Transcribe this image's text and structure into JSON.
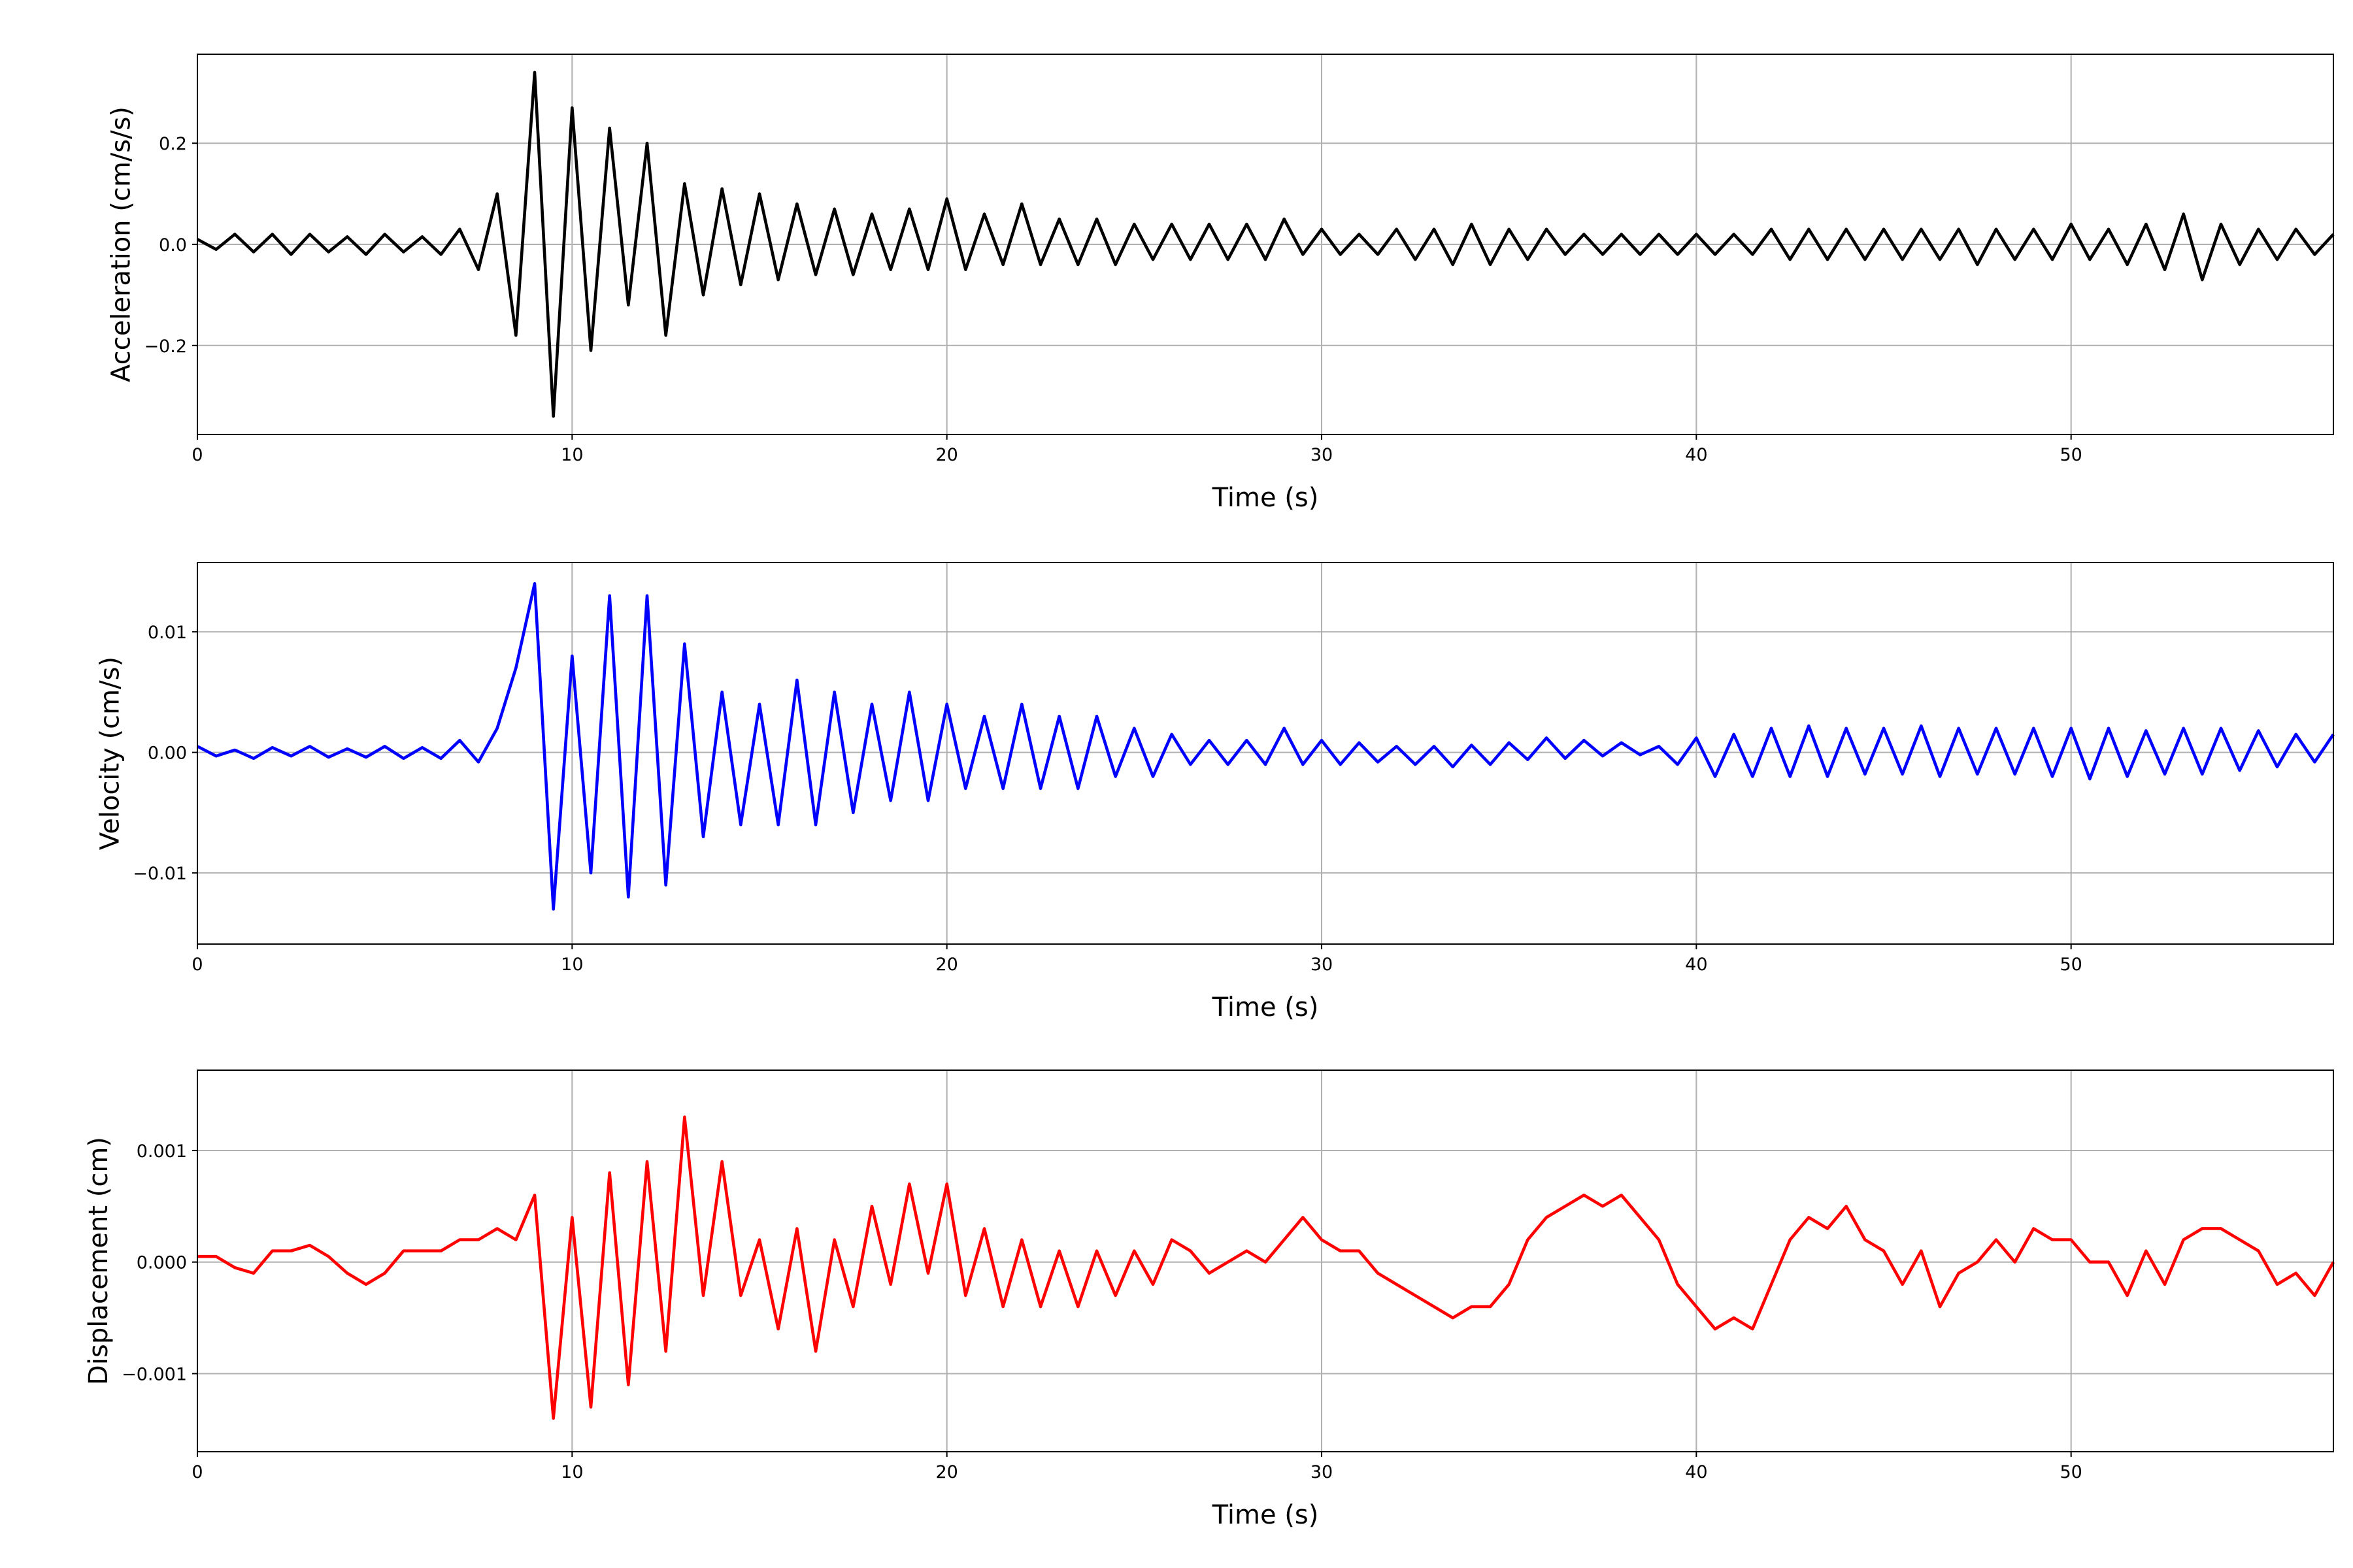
{
  "chart_data": [
    {
      "type": "line",
      "xlabel": "Time (s)",
      "ylabel": "Acceleration (cm/s/s)",
      "x": [
        0,
        0.5,
        1,
        1.5,
        2,
        2.5,
        3,
        3.5,
        4,
        4.5,
        5,
        5.5,
        6,
        6.5,
        7,
        7.5,
        8,
        8.5,
        9,
        9.5,
        10,
        10.5,
        11,
        11.5,
        12,
        12.5,
        13,
        13.5,
        14,
        14.5,
        15,
        15.5,
        16,
        16.5,
        17,
        17.5,
        18,
        18.5,
        19,
        19.5,
        20,
        20.5,
        21,
        21.5,
        22,
        22.5,
        23,
        23.5,
        24,
        24.5,
        25,
        25.5,
        26,
        26.5,
        27,
        27.5,
        28,
        28.5,
        29,
        29.5,
        30,
        30.5,
        31,
        31.5,
        32,
        32.5,
        33,
        33.5,
        34,
        34.5,
        35,
        35.5,
        36,
        36.5,
        37,
        37.5,
        38,
        38.5,
        39,
        39.5,
        40,
        40.5,
        41,
        41.5,
        42,
        42.5,
        43,
        43.5,
        44,
        44.5,
        45,
        45.5,
        46,
        46.5,
        47,
        47.5,
        48,
        48.5,
        49,
        49.5,
        50,
        50.5,
        51,
        51.5,
        52,
        52.5,
        53,
        53.5,
        54,
        54.5,
        55,
        55.5,
        56,
        56.5,
        57
      ],
      "series": [
        {
          "color": "#000000",
          "values": [
            0.01,
            -0.01,
            0.02,
            -0.015,
            0.02,
            -0.02,
            0.02,
            -0.015,
            0.015,
            -0.02,
            0.02,
            -0.015,
            0.015,
            -0.02,
            0.03,
            -0.05,
            0.1,
            -0.18,
            0.34,
            -0.34,
            0.27,
            -0.21,
            0.23,
            -0.12,
            0.2,
            -0.18,
            0.12,
            -0.1,
            0.11,
            -0.08,
            0.1,
            -0.07,
            0.08,
            -0.06,
            0.07,
            -0.06,
            0.06,
            -0.05,
            0.07,
            -0.05,
            0.09,
            -0.05,
            0.06,
            -0.04,
            0.08,
            -0.04,
            0.05,
            -0.04,
            0.05,
            -0.04,
            0.04,
            -0.03,
            0.04,
            -0.03,
            0.04,
            -0.03,
            0.04,
            -0.03,
            0.05,
            -0.02,
            0.03,
            -0.02,
            0.02,
            -0.02,
            0.03,
            -0.03,
            0.03,
            -0.04,
            0.04,
            -0.04,
            0.03,
            -0.03,
            0.03,
            -0.02,
            0.02,
            -0.02,
            0.02,
            -0.02,
            0.02,
            -0.02,
            0.02,
            -0.02,
            0.02,
            -0.02,
            0.03,
            -0.03,
            0.03,
            -0.03,
            0.03,
            -0.03,
            0.03,
            -0.03,
            0.03,
            -0.03,
            0.03,
            -0.04,
            0.03,
            -0.03,
            0.03,
            -0.03,
            0.04,
            -0.03,
            0.03,
            -0.04,
            0.04,
            -0.05,
            0.06,
            -0.07,
            0.04,
            -0.04,
            0.03,
            -0.03,
            0.03,
            -0.02,
            0.02
          ]
        }
      ],
      "xlim": [
        0,
        57
      ],
      "xticks": [
        0,
        10,
        20,
        30,
        40,
        50
      ],
      "ylim": [
        -0.376,
        0.376
      ],
      "yticks": [
        {
          "value": -0.2,
          "label": "−0.2"
        },
        {
          "value": 0,
          "label": "0.0"
        },
        {
          "value": 0.2,
          "label": "0.2"
        }
      ],
      "grid": true
    },
    {
      "type": "line",
      "xlabel": "Time (s)",
      "ylabel": "Velocity (cm/s)",
      "x": [
        0,
        0.5,
        1,
        1.5,
        2,
        2.5,
        3,
        3.5,
        4,
        4.5,
        5,
        5.5,
        6,
        6.5,
        7,
        7.5,
        8,
        8.5,
        9,
        9.5,
        10,
        10.5,
        11,
        11.5,
        12,
        12.5,
        13,
        13.5,
        14,
        14.5,
        15,
        15.5,
        16,
        16.5,
        17,
        17.5,
        18,
        18.5,
        19,
        19.5,
        20,
        20.5,
        21,
        21.5,
        22,
        22.5,
        23,
        23.5,
        24,
        24.5,
        25,
        25.5,
        26,
        26.5,
        27,
        27.5,
        28,
        28.5,
        29,
        29.5,
        30,
        30.5,
        31,
        31.5,
        32,
        32.5,
        33,
        33.5,
        34,
        34.5,
        35,
        35.5,
        36,
        36.5,
        37,
        37.5,
        38,
        38.5,
        39,
        39.5,
        40,
        40.5,
        41,
        41.5,
        42,
        42.5,
        43,
        43.5,
        44,
        44.5,
        45,
        45.5,
        46,
        46.5,
        47,
        47.5,
        48,
        48.5,
        49,
        49.5,
        50,
        50.5,
        51,
        51.5,
        52,
        52.5,
        53,
        53.5,
        54,
        54.5,
        55,
        55.5,
        56,
        56.5,
        57
      ],
      "series": [
        {
          "color": "#0000ff",
          "values": [
            0.0005,
            -0.0003,
            0.0002,
            -0.0005,
            0.0004,
            -0.0003,
            0.0005,
            -0.0004,
            0.0003,
            -0.0004,
            0.0005,
            -0.0005,
            0.0004,
            -0.0005,
            0.001,
            -0.0008,
            0.002,
            0.007,
            0.014,
            -0.013,
            0.008,
            -0.01,
            0.013,
            -0.012,
            0.013,
            -0.011,
            0.009,
            -0.007,
            0.005,
            -0.006,
            0.004,
            -0.006,
            0.006,
            -0.006,
            0.005,
            -0.005,
            0.004,
            -0.004,
            0.005,
            -0.004,
            0.004,
            -0.003,
            0.003,
            -0.003,
            0.004,
            -0.003,
            0.003,
            -0.003,
            0.003,
            -0.002,
            0.002,
            -0.002,
            0.0015,
            -0.001,
            0.001,
            -0.001,
            0.001,
            -0.001,
            0.002,
            -0.001,
            0.001,
            -0.001,
            0.0008,
            -0.0008,
            0.0005,
            -0.001,
            0.0005,
            -0.0012,
            0.0006,
            -0.001,
            0.0008,
            -0.0006,
            0.0012,
            -0.0005,
            0.001,
            -0.0003,
            0.0008,
            -0.0002,
            0.0005,
            -0.001,
            0.0012,
            -0.002,
            0.0015,
            -0.002,
            0.002,
            -0.002,
            0.0022,
            -0.002,
            0.002,
            -0.0018,
            0.002,
            -0.0018,
            0.0022,
            -0.002,
            0.002,
            -0.0018,
            0.002,
            -0.0018,
            0.002,
            -0.002,
            0.002,
            -0.0022,
            0.002,
            -0.002,
            0.0018,
            -0.0018,
            0.002,
            -0.0018,
            0.002,
            -0.0015,
            0.0018,
            -0.0012,
            0.0015,
            -0.0008,
            0.0015
          ]
        }
      ],
      "xlim": [
        0,
        57
      ],
      "xticks": [
        0,
        10,
        20,
        30,
        40,
        50
      ],
      "ylim": [
        -0.0159,
        0.01575
      ],
      "yticks": [
        {
          "value": -0.01,
          "label": "−0.01"
        },
        {
          "value": 0,
          "label": "0.00"
        },
        0.01
      ],
      "grid": true
    },
    {
      "type": "line",
      "xlabel": "Time (s)",
      "ylabel": "Displacement (cm)",
      "x": [
        0,
        0.5,
        1,
        1.5,
        2,
        2.5,
        3,
        3.5,
        4,
        4.5,
        5,
        5.5,
        6,
        6.5,
        7,
        7.5,
        8,
        8.5,
        9,
        9.5,
        10,
        10.5,
        11,
        11.5,
        12,
        12.5,
        13,
        13.5,
        14,
        14.5,
        15,
        15.5,
        16,
        16.5,
        17,
        17.5,
        18,
        18.5,
        19,
        19.5,
        20,
        20.5,
        21,
        21.5,
        22,
        22.5,
        23,
        23.5,
        24,
        24.5,
        25,
        25.5,
        26,
        26.5,
        27,
        27.5,
        28,
        28.5,
        29,
        29.5,
        30,
        30.5,
        31,
        31.5,
        32,
        32.5,
        33,
        33.5,
        34,
        34.5,
        35,
        35.5,
        36,
        36.5,
        37,
        37.5,
        38,
        38.5,
        39,
        39.5,
        40,
        40.5,
        41,
        41.5,
        42,
        42.5,
        43,
        43.5,
        44,
        44.5,
        45,
        45.5,
        46,
        46.5,
        47,
        47.5,
        48,
        48.5,
        49,
        49.5,
        50,
        50.5,
        51,
        51.5,
        52,
        52.5,
        53,
        53.5,
        54,
        54.5,
        55,
        55.5,
        56,
        56.5,
        57
      ],
      "series": [
        {
          "color": "#ff0000",
          "values": [
            5e-05,
            5e-05,
            -5e-05,
            -0.0001,
            0.0001,
            0.0001,
            0.00015,
            5e-05,
            -0.0001,
            -0.0002,
            -0.0001,
            0.0001,
            0.0001,
            0.0001,
            0.0002,
            0.0002,
            0.0003,
            0.0002,
            0.0006,
            -0.0014,
            0.0004,
            -0.0013,
            0.0008,
            -0.0011,
            0.0009,
            -0.0008,
            0.0013,
            -0.0003,
            0.0009,
            -0.0003,
            0.0002,
            -0.0006,
            0.0003,
            -0.0008,
            0.0002,
            -0.0004,
            0.0005,
            -0.0002,
            0.0007,
            -0.0001,
            0.0007,
            -0.0003,
            0.0003,
            -0.0004,
            0.0002,
            -0.0004,
            0.0001,
            -0.0004,
            0.0001,
            -0.0003,
            0.0001,
            -0.0002,
            0.0002,
            0.0001,
            -0.0001,
            0,
            0.0001,
            0,
            0.0002,
            0.0004,
            0.0002,
            0.0001,
            0.0001,
            -0.0001,
            -0.0002,
            -0.0003,
            -0.0004,
            -0.0005,
            -0.0004,
            -0.0004,
            -0.0002,
            0.0002,
            0.0004,
            0.0005,
            0.0006,
            0.0005,
            0.0006,
            0.0004,
            0.0002,
            -0.0002,
            -0.0004,
            -0.0006,
            -0.0005,
            -0.0006,
            -0.0002,
            0.0002,
            0.0004,
            0.0003,
            0.0005,
            0.0002,
            0.0001,
            -0.0002,
            0.0001,
            -0.0004,
            -0.0001,
            0,
            0.0002,
            0,
            0.0003,
            0.0002,
            0.0002,
            0,
            0,
            -0.0003,
            0.0001,
            -0.0002,
            0.0002,
            0.0003,
            0.0003,
            0.0002,
            0.0001,
            -0.0002,
            -0.0001,
            -0.0003,
            0
          ]
        }
      ],
      "xlim": [
        0,
        57
      ],
      "xticks": [
        0,
        10,
        20,
        30,
        40,
        50
      ],
      "ylim": [
        -0.0017,
        0.00172
      ],
      "yticks": [
        {
          "value": -0.001,
          "label": "−0.001"
        },
        {
          "value": 0,
          "label": "0.000"
        },
        0.001
      ],
      "grid": true
    }
  ]
}
